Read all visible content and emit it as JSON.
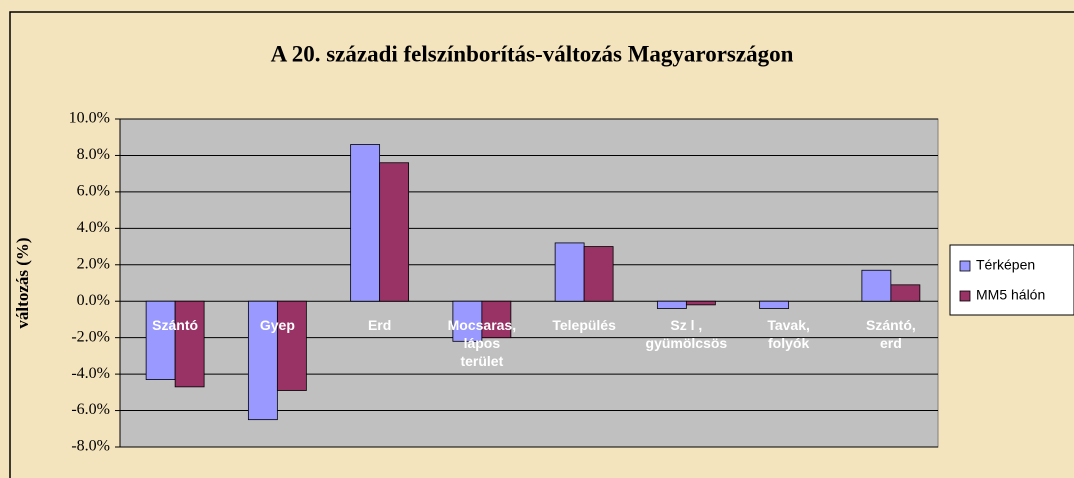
{
  "chart_data": {
    "type": "bar",
    "title": "A 20. századi felszínborítás-változás Magyarországon",
    "ylabel": "változás (%)",
    "categories": [
      "Szántó",
      "Gyep",
      "Erd",
      "Mocsaras,\nlápos\nterület",
      "Település",
      "Sz l ,\ngyümölcsös",
      "Tavak,\nfolyók",
      "Szántó,\nerd"
    ],
    "series": [
      {
        "name": "Térképen",
        "color": "#9999ff",
        "values": [
          -4.3,
          -6.5,
          8.6,
          -2.2,
          3.2,
          -0.4,
          -0.4,
          1.7
        ]
      },
      {
        "name": "MM5 hálón",
        "color": "#993366",
        "values": [
          -4.7,
          -4.9,
          7.6,
          -2.0,
          3.0,
          -0.2,
          0,
          0.9
        ]
      }
    ],
    "ylim": [
      -8,
      10
    ],
    "yticks": [
      {
        "value": -8,
        "label": "-8.0%"
      },
      {
        "value": -6,
        "label": "-6.0%"
      },
      {
        "value": -4,
        "label": "-4.0%"
      },
      {
        "value": -2,
        "label": "-2.0%"
      },
      {
        "value": 0,
        "label": "0.0%"
      },
      {
        "value": 2,
        "label": "2.0%"
      },
      {
        "value": 4,
        "label": "4.0%"
      },
      {
        "value": 6,
        "label": "6.0%"
      },
      {
        "value": 8,
        "label": "8.0%"
      },
      {
        "value": 10,
        "label": "10.0%"
      }
    ],
    "grid": true,
    "legend": "right"
  }
}
